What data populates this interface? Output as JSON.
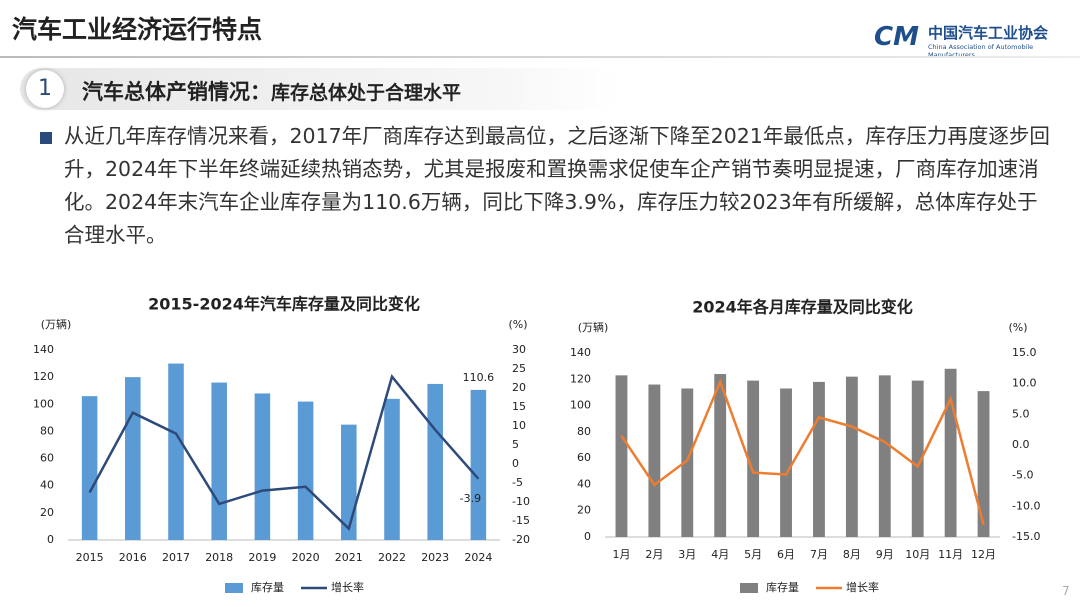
{
  "header": {
    "title": "汽车工业经济运行特点",
    "logo_cn": "中国汽车工业协会",
    "logo_en": "China Association of Automobile Manufacturers"
  },
  "section": {
    "number": "1",
    "title": "汽车总体产销情况：",
    "subtitle": "库存总体处于合理水平"
  },
  "paragraph": "从近几年库存情况来看，2017年厂商库存达到最高位，之后逐渐下降至2021年最低点，库存压力再度逐步回升，2024年下半年终端延续热销态势，尤其是报废和置换需求促使车企产销节奏明显提速，厂商库存加速消化。2024年末汽车企业库存量为110.6万辆，同比下降3.9%，库存压力较2023年有所缓解，总体库存处于合理水平。",
  "page_number": "7",
  "chart_data": [
    {
      "type": "bar-line",
      "title": "2015-2024年汽车库存量及同比变化",
      "y_unit": "(万辆)",
      "y2_unit": "(%)",
      "categories": [
        "2015",
        "2016",
        "2017",
        "2018",
        "2019",
        "2020",
        "2021",
        "2022",
        "2023",
        "2024"
      ],
      "series": [
        {
          "name": "库存量",
          "type": "bar",
          "color": "#5b9bd5",
          "values": [
            106,
            120,
            130,
            116,
            108,
            102,
            85,
            104,
            115,
            110.6
          ],
          "value_labels": [
            null,
            null,
            null,
            null,
            null,
            null,
            null,
            null,
            null,
            "110.6"
          ]
        },
        {
          "name": "增长率",
          "type": "line",
          "axis": "y2",
          "color": "#2e4a7a",
          "values": [
            -7.5,
            13.5,
            8,
            -10.5,
            -7,
            -6,
            -17,
            23,
            9,
            -3.9
          ],
          "value_labels": [
            null,
            null,
            null,
            null,
            null,
            null,
            null,
            null,
            null,
            "-3.9"
          ]
        }
      ],
      "ylim": [
        0,
        140
      ],
      "yticks": [
        0,
        20,
        40,
        60,
        80,
        100,
        120,
        140
      ],
      "y2lim": [
        -20,
        30
      ],
      "y2ticks": [
        -20,
        -15,
        -10,
        -5,
        0,
        5,
        10,
        15,
        20,
        25,
        30
      ],
      "grid": false,
      "legend": "bottom"
    },
    {
      "type": "bar-line",
      "title": "2024年各月库存量及同比变化",
      "y_unit": "(万辆)",
      "y2_unit": "(%)",
      "categories": [
        "1月",
        "2月",
        "3月",
        "4月",
        "5月",
        "6月",
        "7月",
        "8月",
        "9月",
        "10月",
        "11月",
        "12月"
      ],
      "series": [
        {
          "name": "库存量",
          "type": "bar",
          "color": "#808080",
          "values": [
            123,
            116,
            113,
            124,
            119,
            113,
            118,
            122,
            123,
            119,
            128,
            111
          ]
        },
        {
          "name": "增长率",
          "type": "line",
          "axis": "y2",
          "color": "#ed7d31",
          "values": [
            1.5,
            -6.5,
            -2.5,
            10.3,
            -4.5,
            -4.8,
            4.5,
            3,
            0.5,
            -3.5,
            7.5,
            -13
          ]
        }
      ],
      "ylim": [
        0,
        140
      ],
      "yticks": [
        0,
        20,
        40,
        60,
        80,
        100,
        120,
        140
      ],
      "y2lim": [
        -15,
        15
      ],
      "y2ticks": [
        {
          "value": -15,
          "label": "-15.0"
        },
        {
          "value": -10,
          "label": "-10.0"
        },
        {
          "value": -5,
          "label": "-5.0"
        },
        {
          "value": 0,
          "label": "0.0"
        },
        {
          "value": 5,
          "label": "5.0"
        },
        {
          "value": 10,
          "label": "10.0"
        },
        {
          "value": 15,
          "label": "15.0"
        }
      ],
      "grid": false,
      "legend": "bottom"
    }
  ]
}
